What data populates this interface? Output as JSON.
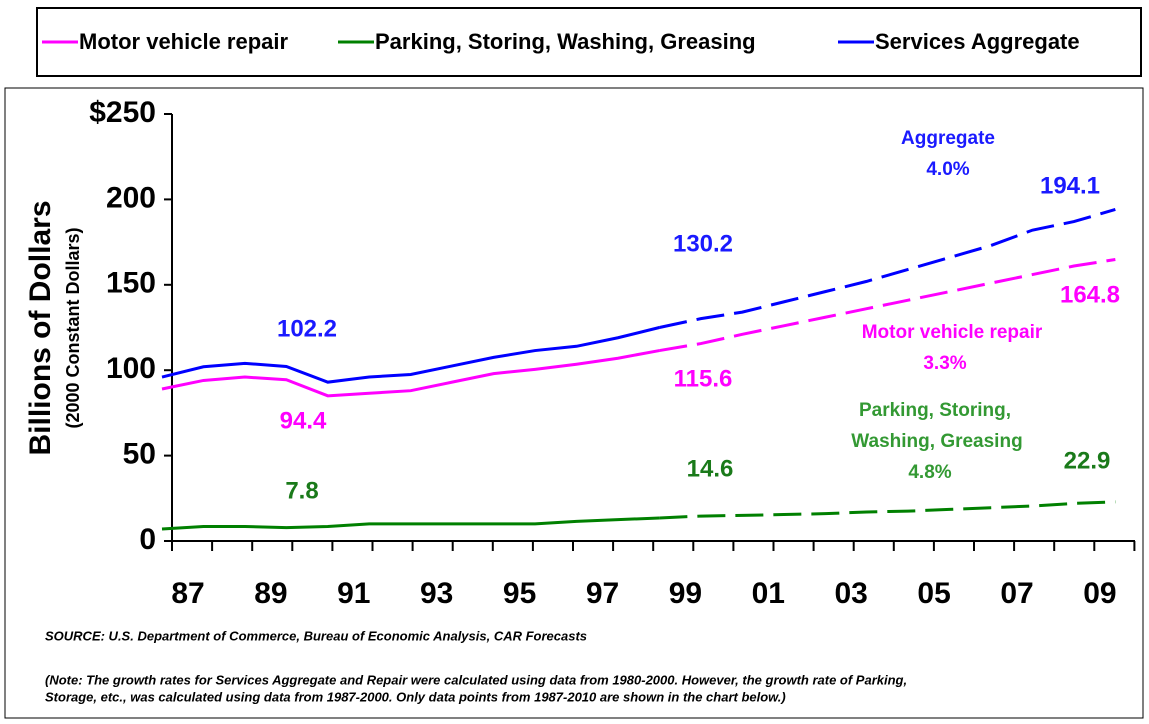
{
  "chart_data": {
    "type": "line",
    "y_label": "Billions of Dollars",
    "y_sublabel": "(2000 Constant Dollars)",
    "categories": [
      "87",
      null,
      "89",
      null,
      "91",
      null,
      "93",
      null,
      "95",
      null,
      "97",
      null,
      "99",
      null,
      "01",
      null,
      "03",
      null,
      "05",
      null,
      "07",
      null,
      "09",
      null
    ],
    "series": [
      {
        "name": "Motor vehicle repair",
        "color": "#ff00ff",
        "values": [
          89,
          94,
          96,
          94.4,
          85,
          86.5,
          88,
          93,
          98,
          100.5,
          103.5,
          107,
          111.5,
          115.6,
          121,
          126,
          131,
          136,
          141,
          146,
          151,
          156,
          161,
          164.8
        ]
      },
      {
        "name": "Parking, Storing, Washing, Greasing",
        "color": "#008000",
        "values": [
          7,
          8.5,
          8.5,
          7.8,
          8.5,
          10,
          10,
          10,
          10,
          10,
          11.5,
          12.5,
          13.5,
          14.6,
          15,
          15.5,
          16,
          17,
          17.5,
          18.5,
          19.5,
          20.5,
          22,
          22.9
        ]
      },
      {
        "name": "Services Aggregate",
        "color": "#0000ff",
        "values": [
          96,
          102,
          104,
          102.2,
          93,
          96,
          97.5,
          102.5,
          107.5,
          111.5,
          114,
          119,
          125,
          130.2,
          134,
          140,
          146,
          152,
          159,
          166,
          173,
          182,
          187,
          194.1
        ]
      }
    ],
    "ylim": [
      0,
      250
    ],
    "yticks": [
      0,
      50,
      100,
      150,
      200,
      {
        "value": 250,
        "label": "$250"
      }
    ],
    "annotations": [
      {
        "color": "#1a1aff",
        "lines": [
          "Aggregate",
          "4.0%"
        ]
      },
      {
        "color": "#ff00ff",
        "lines": [
          "Motor vehicle repair",
          "3.3%"
        ]
      },
      {
        "color": "#339933",
        "lines": [
          "Parking, Storing,",
          "Washing, Greasing",
          "4.8%"
        ]
      }
    ],
    "source": "SOURCE:  U.S. Department of Commerce, Bureau of Economic Analysis, CAR Forecasts",
    "note_lines": [
      "(Note:  The growth rates for Services Aggregate and Repair were calculated using data from 1980-2000.  However, the growth rate of Parking,",
      "Storage, etc., was calculated using data from 1987-2000.  Only data points from 1987-2010 are shown in the chart below.)"
    ]
  }
}
